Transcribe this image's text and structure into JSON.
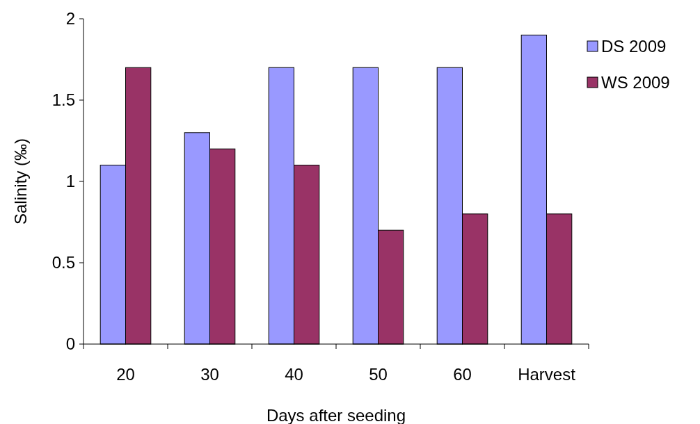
{
  "chart_data": {
    "type": "bar",
    "xlabel": "Days after seeding",
    "ylabel": "Salinity (‰)",
    "categories": [
      "20",
      "30",
      "40",
      "50",
      "60",
      "Harvest"
    ],
    "series": [
      {
        "name": "DS 2009",
        "color": "#9999ff",
        "values": [
          1.1,
          1.3,
          1.7,
          1.7,
          1.7,
          1.9
        ]
      },
      {
        "name": "WS 2009",
        "color": "#993366",
        "values": [
          1.7,
          1.2,
          1.1,
          0.7,
          0.8,
          0.8
        ]
      }
    ],
    "ylim": [
      0,
      2
    ],
    "yticks": [
      0,
      0.5,
      1,
      1.5,
      2
    ],
    "grid": false,
    "legend": "right"
  }
}
